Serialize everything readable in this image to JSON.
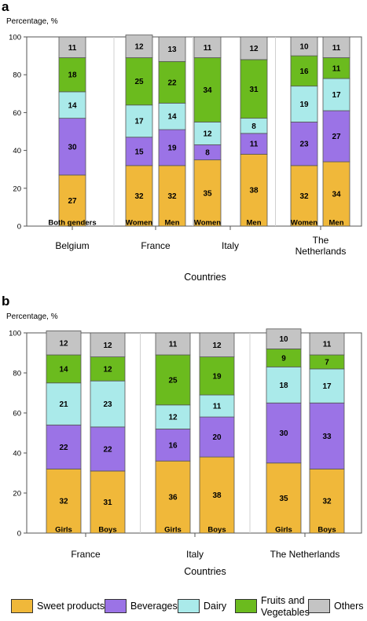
{
  "categories": [
    "Sweet products",
    "Beverages",
    "Dairy",
    "Fruits and Vegetables",
    "Others"
  ],
  "colors": {
    "Sweet products": "#f0b83a",
    "Beverages": "#9b73e6",
    "Dairy": "#aaeaea",
    "Fruits and Vegetables": "#6bbb1e",
    "Others": "#c4c4c4"
  },
  "legend": [
    {
      "label": "Sweet products",
      "color": "#f0b83a"
    },
    {
      "label": "Beverages",
      "color": "#9b73e6"
    },
    {
      "label": "Dairy",
      "color": "#aaeaea"
    },
    {
      "label": "Fruits and\nVegetables",
      "color": "#6bbb1e"
    },
    {
      "label": "Others",
      "color": "#c4c4c4"
    }
  ],
  "chart_data": [
    {
      "panel": "a",
      "type": "bar",
      "stacked": true,
      "ylabel": "Percentage, %",
      "xlabel": "Countries",
      "ylim": [
        0,
        100
      ],
      "yticks": [
        0,
        20,
        40,
        60,
        80,
        100
      ],
      "groups": [
        {
          "name": "Belgium",
          "bars": [
            {
              "label": "Both genders",
              "values": [
                27,
                30,
                14,
                18,
                11
              ]
            }
          ]
        },
        {
          "name": "France",
          "bars": [
            {
              "label": "Women",
              "values": [
                32,
                15,
                17,
                25,
                12
              ]
            },
            {
              "label": "Men",
              "values": [
                32,
                19,
                14,
                22,
                13
              ]
            }
          ]
        },
        {
          "name": "Italy",
          "bars": [
            {
              "label": "Women",
              "values": [
                35,
                8,
                12,
                34,
                11
              ]
            },
            {
              "label": "Men",
              "values": [
                38,
                11,
                8,
                31,
                12
              ]
            }
          ]
        },
        {
          "name": "The\nNetherlands",
          "bars": [
            {
              "label": "Women",
              "values": [
                32,
                23,
                19,
                16,
                10
              ]
            },
            {
              "label": "Men",
              "values": [
                34,
                27,
                17,
                11,
                11
              ]
            }
          ]
        }
      ]
    },
    {
      "panel": "b",
      "type": "bar",
      "stacked": true,
      "ylabel": "Percentage, %",
      "xlabel": "Countries",
      "ylim": [
        0,
        100
      ],
      "yticks": [
        0,
        20,
        40,
        60,
        80,
        100
      ],
      "groups": [
        {
          "name": "France",
          "bars": [
            {
              "label": "Girls",
              "values": [
                32,
                22,
                21,
                14,
                12
              ]
            },
            {
              "label": "Boys",
              "values": [
                31,
                22,
                23,
                12,
                12
              ]
            }
          ]
        },
        {
          "name": "Italy",
          "bars": [
            {
              "label": "Girls",
              "values": [
                36,
                16,
                12,
                25,
                11
              ]
            },
            {
              "label": "Boys",
              "values": [
                38,
                20,
                11,
                19,
                12
              ]
            }
          ]
        },
        {
          "name": "The Netherlands",
          "bars": [
            {
              "label": "Girls",
              "values": [
                35,
                30,
                18,
                9,
                10
              ]
            },
            {
              "label": "Boys",
              "values": [
                32,
                33,
                17,
                7,
                11
              ]
            }
          ]
        }
      ]
    }
  ]
}
